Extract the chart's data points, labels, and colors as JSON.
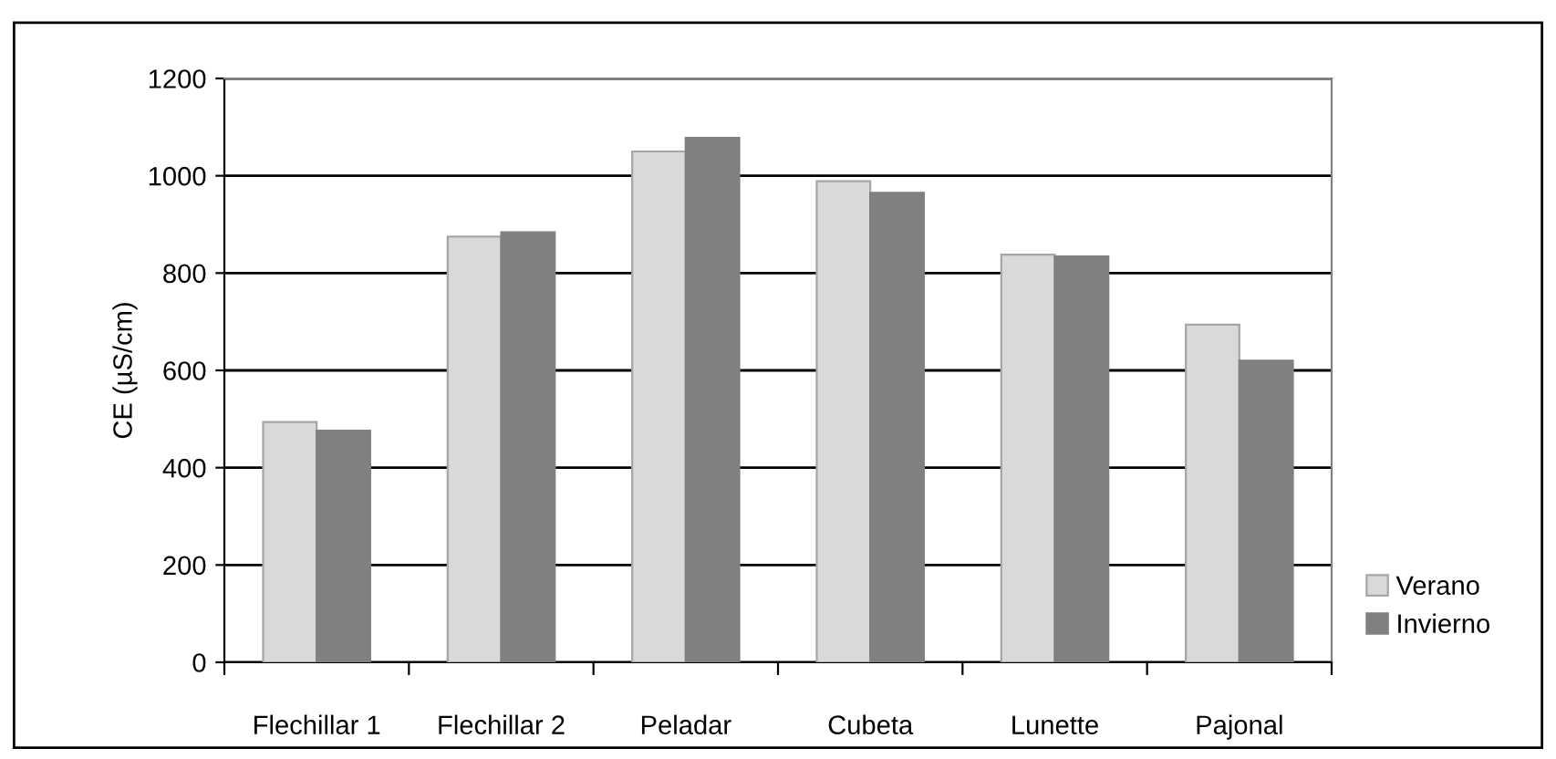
{
  "chart_data": {
    "type": "bar",
    "ylabel": "CE (µS/cm)",
    "categories": [
      "Flechillar 1",
      "Flechillar 2",
      "Peladar",
      "Cubeta",
      "Lunette",
      "Pajonal"
    ],
    "series": [
      {
        "name": "Verano",
        "color": "#d9d9d9",
        "values": [
          494,
          875,
          1050,
          989,
          838,
          694
        ]
      },
      {
        "name": "Invierno",
        "color": "#808080",
        "values": [
          476,
          884,
          1078,
          965,
          834,
          620
        ]
      }
    ],
    "ylim": [
      0,
      1200
    ],
    "yticks": [
      0,
      200,
      400,
      600,
      800,
      1000,
      1200
    ],
    "grid": "y",
    "legend": "right"
  }
}
